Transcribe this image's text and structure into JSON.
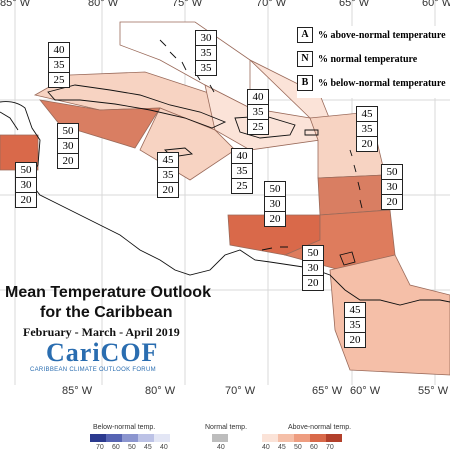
{
  "map": {
    "title_line1": "Mean Temperature Outlook",
    "title_line2": "for the Caribbean",
    "period": "February - March - April 2019",
    "logo_text": "CariCOF",
    "logo_subtitle": "CARIBBEAN CLIMATE OUTLOOK FORUM",
    "lon_ticks": [
      "85° W",
      "80° W",
      "75° W",
      "70° W",
      "65° W",
      "60° W",
      "55° W"
    ],
    "key": [
      {
        "letter": "A",
        "label": "% above-normal temperature"
      },
      {
        "letter": "N",
        "label": "% normal temperature"
      },
      {
        "letter": "B",
        "label": "% below-normal temperature"
      }
    ],
    "regions": [
      {
        "id": "bahamas",
        "A": "30",
        "N": "35",
        "B": "35"
      },
      {
        "id": "cuba",
        "A": "40",
        "N": "35",
        "B": "25"
      },
      {
        "id": "cayman",
        "A": "50",
        "N": "30",
        "B": "20"
      },
      {
        "id": "belize",
        "A": "50",
        "N": "30",
        "B": "20"
      },
      {
        "id": "jamaica",
        "A": "45",
        "N": "35",
        "B": "20"
      },
      {
        "id": "turks",
        "A": "40",
        "N": "35",
        "B": "25"
      },
      {
        "id": "hispaniola",
        "A": "40",
        "N": "35",
        "B": "25"
      },
      {
        "id": "leeward",
        "A": "45",
        "N": "35",
        "B": "20"
      },
      {
        "id": "windward",
        "A": "50",
        "N": "30",
        "B": "20"
      },
      {
        "id": "abc",
        "A": "50",
        "N": "30",
        "B": "20"
      },
      {
        "id": "trinidad",
        "A": "50",
        "N": "30",
        "B": "20"
      },
      {
        "id": "guianas",
        "A": "45",
        "N": "35",
        "B": "20"
      }
    ],
    "legend": {
      "below_caption": "Below-normal temp.",
      "normal_caption": "Normal temp.",
      "above_caption": "Above-normal temp.",
      "below_levels": [
        "70",
        "60",
        "50",
        "45",
        "40"
      ],
      "normal_levels": [
        "40"
      ],
      "above_levels": [
        "40",
        "45",
        "50",
        "60",
        "70"
      ],
      "below_colors": [
        "#2b3a8f",
        "#5664b3",
        "#8b95cf",
        "#bcc2e6",
        "#e3e6f5"
      ],
      "normal_colors": [
        "#bdbdbd"
      ],
      "above_colors": [
        "#fbe3d8",
        "#f5bfa8",
        "#ee9d80",
        "#d9694a",
        "#b2402b"
      ]
    }
  }
}
